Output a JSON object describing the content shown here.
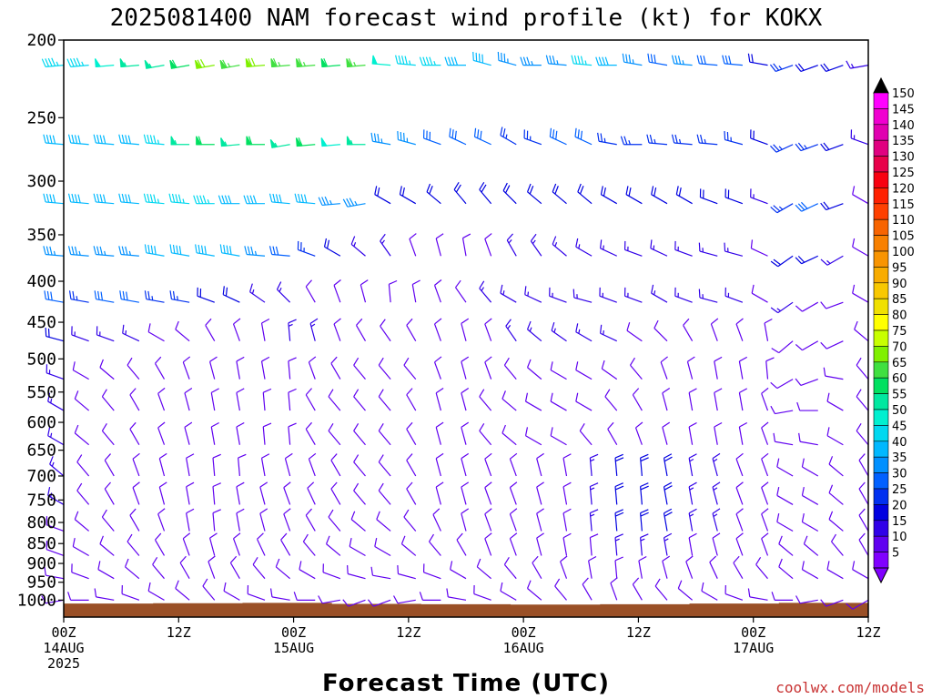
{
  "chart_data": {
    "type": "wind_barb_profile",
    "title": "2025081400 NAM forecast wind profile (kt) for KOKX",
    "xlabel": "Forecast Time (UTC)",
    "credit": "coolwx.com/models",
    "y_ticks": [
      200,
      250,
      300,
      350,
      400,
      450,
      500,
      550,
      600,
      650,
      700,
      750,
      800,
      850,
      900,
      950,
      1000
    ],
    "y_unit": "hPa",
    "y_scale": "log",
    "ylim": [
      1050,
      200
    ],
    "xlim_hours": [
      0,
      84
    ],
    "x_ticks": [
      {
        "hour": 0,
        "lines": [
          "00Z",
          "14AUG",
          "2025"
        ]
      },
      {
        "hour": 12,
        "lines": [
          "12Z"
        ]
      },
      {
        "hour": 24,
        "lines": [
          "00Z",
          "15AUG"
        ]
      },
      {
        "hour": 36,
        "lines": [
          "12Z"
        ]
      },
      {
        "hour": 48,
        "lines": [
          "00Z",
          "16AUG"
        ]
      },
      {
        "hour": 60,
        "lines": [
          "12Z"
        ]
      },
      {
        "hour": 72,
        "lines": [
          "00Z",
          "17AUG"
        ]
      },
      {
        "hour": 84,
        "lines": [
          "12Z"
        ]
      }
    ],
    "colorbar": {
      "labels": [
        "150",
        "145",
        "140",
        "135",
        "130",
        "125",
        "120",
        "115",
        "110",
        "105",
        "100",
        "95",
        "90",
        "85",
        "80",
        "75",
        "70",
        "65",
        "60",
        "55",
        "50",
        "45",
        "40",
        "35",
        "30",
        "25",
        "20",
        "15",
        "10",
        "5"
      ],
      "colors": [
        "#ff00ff",
        "#f000d0",
        "#e000b0",
        "#e00080",
        "#e8004a",
        "#f80010",
        "#ff2000",
        "#ff4000",
        "#f86400",
        "#f88000",
        "#f89400",
        "#f8ac00",
        "#f8c800",
        "#f0e000",
        "#ffff00",
        "#c8ff00",
        "#80f000",
        "#40e040",
        "#00e060",
        "#00e8a0",
        "#00f0d0",
        "#00d8f0",
        "#00b8ff",
        "#0090ff",
        "#0060ff",
        "#0030f0",
        "#0000e0",
        "#3000e8",
        "#6000f0",
        "#8000ff"
      ]
    },
    "wind_rows": [
      {
        "p": 215,
        "dir": [
          265,
          265,
          265,
          265,
          260,
          260,
          260,
          260,
          265,
          265,
          265,
          265,
          265,
          275,
          275,
          270,
          270,
          285,
          285,
          270,
          275,
          275,
          270,
          280,
          280,
          275,
          275,
          275,
          280,
          250,
          250,
          250,
          260
        ],
        "spd": [
          45,
          45,
          50,
          55,
          55,
          60,
          70,
          65,
          70,
          65,
          65,
          60,
          65,
          50,
          45,
          45,
          40,
          40,
          35,
          35,
          35,
          45,
          40,
          35,
          30,
          35,
          30,
          30,
          20,
          25,
          20,
          20,
          15
        ]
      },
      {
        "p": 270,
        "dir": [
          275,
          275,
          275,
          275,
          275,
          270,
          270,
          265,
          270,
          260,
          265,
          265,
          270,
          280,
          285,
          290,
          295,
          295,
          300,
          290,
          295,
          295,
          280,
          270,
          275,
          275,
          275,
          285,
          290,
          245,
          250,
          250,
          290
        ],
        "spd": [
          40,
          40,
          40,
          40,
          45,
          55,
          60,
          55,
          60,
          55,
          60,
          50,
          55,
          35,
          35,
          30,
          30,
          30,
          25,
          25,
          30,
          30,
          25,
          25,
          25,
          25,
          25,
          25,
          20,
          25,
          25,
          20,
          15
        ]
      },
      {
        "p": 320,
        "dir": [
          275,
          275,
          275,
          275,
          275,
          275,
          270,
          270,
          270,
          275,
          275,
          265,
          260,
          300,
          300,
          310,
          320,
          320,
          315,
          310,
          310,
          310,
          300,
          300,
          300,
          300,
          290,
          290,
          290,
          240,
          245,
          250,
          300
        ],
        "spd": [
          40,
          40,
          40,
          40,
          45,
          45,
          45,
          40,
          40,
          40,
          40,
          35,
          35,
          20,
          20,
          20,
          20,
          20,
          20,
          20,
          20,
          20,
          20,
          20,
          20,
          20,
          20,
          20,
          15,
          25,
          30,
          20,
          10
        ]
      },
      {
        "p": 372,
        "dir": [
          275,
          275,
          275,
          275,
          280,
          280,
          280,
          280,
          275,
          275,
          290,
          300,
          310,
          325,
          340,
          345,
          350,
          340,
          330,
          325,
          310,
          300,
          295,
          290,
          295,
          290,
          285,
          285,
          295,
          235,
          245,
          240,
          300
        ],
        "spd": [
          35,
          35,
          35,
          35,
          40,
          40,
          40,
          40,
          35,
          30,
          25,
          20,
          15,
          15,
          10,
          10,
          10,
          10,
          15,
          15,
          15,
          15,
          15,
          15,
          15,
          15,
          15,
          15,
          10,
          20,
          20,
          15,
          10
        ]
      },
      {
        "p": 425,
        "dir": [
          280,
          280,
          280,
          280,
          280,
          280,
          290,
          295,
          305,
          315,
          330,
          340,
          345,
          355,
          350,
          340,
          325,
          320,
          300,
          295,
          290,
          285,
          290,
          290,
          300,
          290,
          285,
          290,
          300,
          235,
          240,
          250,
          300
        ],
        "spd": [
          30,
          25,
          30,
          30,
          25,
          25,
          20,
          20,
          15,
          15,
          10,
          10,
          10,
          10,
          10,
          10,
          10,
          15,
          15,
          15,
          15,
          15,
          15,
          15,
          15,
          15,
          15,
          15,
          10,
          15,
          10,
          10,
          10
        ]
      },
      {
        "p": 475,
        "dir": [
          285,
          290,
          290,
          295,
          300,
          310,
          330,
          340,
          350,
          355,
          345,
          340,
          330,
          325,
          330,
          340,
          345,
          340,
          325,
          310,
          305,
          300,
          295,
          305,
          315,
          330,
          340,
          340,
          350,
          230,
          240,
          245,
          310
        ],
        "spd": [
          20,
          15,
          15,
          15,
          10,
          10,
          10,
          10,
          10,
          15,
          15,
          10,
          10,
          10,
          10,
          10,
          10,
          10,
          15,
          15,
          15,
          15,
          15,
          10,
          10,
          10,
          10,
          10,
          10,
          10,
          10,
          10,
          10
        ]
      },
      {
        "p": 530,
        "dir": [
          290,
          300,
          310,
          320,
          330,
          340,
          345,
          350,
          350,
          355,
          340,
          330,
          320,
          320,
          320,
          340,
          345,
          340,
          320,
          310,
          300,
          300,
          305,
          320,
          340,
          345,
          350,
          350,
          355,
          240,
          250,
          280,
          320
        ],
        "spd": [
          15,
          10,
          10,
          10,
          10,
          10,
          10,
          10,
          10,
          10,
          10,
          10,
          10,
          10,
          10,
          10,
          10,
          10,
          10,
          10,
          10,
          10,
          10,
          10,
          10,
          10,
          10,
          10,
          10,
          10,
          10,
          10,
          10
        ]
      },
      {
        "p": 580,
        "dir": [
          300,
          310,
          320,
          330,
          340,
          345,
          350,
          350,
          355,
          355,
          330,
          320,
          320,
          320,
          330,
          345,
          345,
          320,
          310,
          300,
          300,
          300,
          320,
          330,
          345,
          350,
          350,
          350,
          340,
          260,
          270,
          300,
          320
        ],
        "spd": [
          15,
          10,
          10,
          10,
          10,
          10,
          10,
          10,
          10,
          10,
          10,
          10,
          10,
          10,
          10,
          10,
          10,
          10,
          10,
          10,
          10,
          10,
          10,
          10,
          10,
          10,
          10,
          10,
          10,
          10,
          10,
          10,
          10
        ]
      },
      {
        "p": 640,
        "dir": [
          300,
          310,
          320,
          330,
          340,
          345,
          350,
          350,
          355,
          355,
          330,
          320,
          320,
          320,
          330,
          345,
          345,
          320,
          310,
          300,
          300,
          320,
          330,
          340,
          345,
          350,
          350,
          350,
          340,
          280,
          280,
          300,
          320
        ],
        "spd": [
          15,
          10,
          10,
          10,
          10,
          10,
          10,
          10,
          10,
          10,
          10,
          10,
          10,
          10,
          10,
          10,
          10,
          10,
          10,
          10,
          10,
          10,
          10,
          10,
          10,
          10,
          10,
          10,
          10,
          10,
          10,
          10,
          10
        ]
      },
      {
        "p": 700,
        "dir": [
          310,
          320,
          330,
          340,
          345,
          350,
          355,
          355,
          350,
          345,
          340,
          330,
          320,
          320,
          330,
          345,
          345,
          340,
          340,
          345,
          350,
          355,
          355,
          355,
          350,
          350,
          345,
          340,
          340,
          300,
          300,
          310,
          330
        ],
        "spd": [
          15,
          10,
          10,
          10,
          10,
          10,
          10,
          10,
          10,
          10,
          10,
          10,
          10,
          10,
          10,
          10,
          10,
          10,
          10,
          10,
          10,
          15,
          20,
          20,
          20,
          15,
          15,
          10,
          10,
          10,
          10,
          10,
          10
        ]
      },
      {
        "p": 760,
        "dir": [
          300,
          320,
          330,
          340,
          345,
          350,
          355,
          350,
          345,
          340,
          335,
          330,
          320,
          320,
          330,
          345,
          345,
          340,
          340,
          345,
          350,
          355,
          355,
          355,
          350,
          350,
          345,
          340,
          340,
          300,
          300,
          310,
          330
        ],
        "spd": [
          15,
          10,
          10,
          10,
          10,
          10,
          10,
          10,
          10,
          10,
          10,
          10,
          10,
          10,
          10,
          10,
          10,
          10,
          10,
          10,
          10,
          15,
          20,
          20,
          20,
          15,
          15,
          10,
          10,
          10,
          10,
          10,
          10
        ]
      },
      {
        "p": 820,
        "dir": [
          290,
          310,
          320,
          330,
          340,
          350,
          355,
          350,
          345,
          340,
          330,
          320,
          310,
          310,
          320,
          335,
          345,
          340,
          340,
          345,
          350,
          355,
          355,
          355,
          350,
          350,
          345,
          340,
          340,
          300,
          300,
          310,
          330
        ],
        "spd": [
          10,
          10,
          10,
          10,
          10,
          10,
          10,
          10,
          10,
          10,
          10,
          10,
          10,
          10,
          10,
          10,
          10,
          10,
          10,
          10,
          10,
          15,
          20,
          20,
          20,
          15,
          15,
          10,
          10,
          10,
          10,
          10,
          10
        ]
      },
      {
        "p": 880,
        "dir": [
          290,
          300,
          310,
          320,
          330,
          340,
          345,
          340,
          335,
          330,
          320,
          310,
          300,
          300,
          310,
          320,
          330,
          340,
          340,
          345,
          350,
          355,
          355,
          355,
          350,
          350,
          345,
          340,
          340,
          310,
          310,
          320,
          330
        ],
        "spd": [
          10,
          10,
          10,
          10,
          10,
          10,
          10,
          10,
          10,
          10,
          10,
          10,
          10,
          10,
          10,
          10,
          10,
          10,
          10,
          10,
          10,
          10,
          15,
          15,
          15,
          10,
          10,
          10,
          10,
          10,
          10,
          10,
          10
        ]
      },
      {
        "p": 940,
        "dir": [
          280,
          290,
          300,
          310,
          320,
          330,
          340,
          330,
          320,
          310,
          300,
          290,
          285,
          280,
          285,
          290,
          300,
          310,
          320,
          330,
          340,
          350,
          355,
          350,
          345,
          340,
          335,
          330,
          320,
          310,
          300,
          300,
          300
        ],
        "spd": [
          10,
          10,
          10,
          10,
          10,
          10,
          10,
          10,
          10,
          10,
          10,
          10,
          10,
          10,
          10,
          10,
          10,
          10,
          10,
          10,
          10,
          10,
          10,
          10,
          10,
          10,
          10,
          10,
          10,
          10,
          10,
          10,
          10
        ]
      },
      {
        "p": 1000,
        "dir": [
          260,
          270,
          280,
          290,
          300,
          310,
          320,
          300,
          290,
          280,
          270,
          260,
          250,
          250,
          260,
          270,
          280,
          290,
          300,
          310,
          320,
          330,
          340,
          330,
          320,
          310,
          300,
          290,
          280,
          270,
          260,
          250,
          240
        ],
        "spd": [
          10,
          10,
          10,
          10,
          10,
          10,
          10,
          10,
          10,
          10,
          10,
          10,
          10,
          10,
          10,
          10,
          10,
          10,
          10,
          10,
          10,
          10,
          10,
          10,
          10,
          10,
          10,
          10,
          10,
          10,
          10,
          10,
          10
        ]
      }
    ],
    "terrain": {
      "color": "#9a5027",
      "p_top": [
        1010,
        1009,
        1008,
        1011,
        1012,
        1013,
        1012,
        1010,
        1008
      ]
    },
    "legend_position": "right colorbar"
  }
}
